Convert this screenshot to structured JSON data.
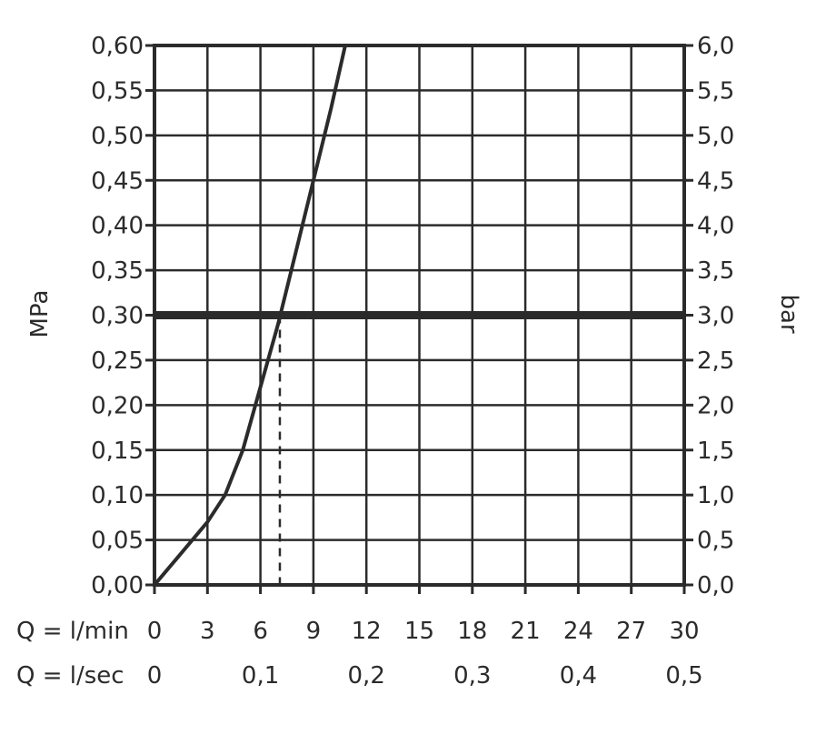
{
  "chart_data": {
    "type": "line",
    "left_axis": {
      "label": "MPa",
      "ticks": [
        "0,00",
        "0,05",
        "0,10",
        "0,15",
        "0,20",
        "0,25",
        "0,30",
        "0,35",
        "0,40",
        "0,45",
        "0,50",
        "0,55",
        "0,60"
      ],
      "range": [
        0,
        0.6
      ]
    },
    "right_axis": {
      "label": "bar",
      "ticks": [
        "0,0",
        "0,5",
        "1,0",
        "1,5",
        "2,0",
        "2,5",
        "3,0",
        "3,5",
        "4,0",
        "4,5",
        "5,0",
        "5,5",
        "6,0"
      ],
      "range": [
        0,
        6
      ]
    },
    "x_axis_lmin": {
      "label": "Q = l/min",
      "ticks": [
        "0",
        "3",
        "6",
        "9",
        "12",
        "15",
        "18",
        "21",
        "24",
        "27",
        "30"
      ],
      "range": [
        0,
        30
      ]
    },
    "x_axis_lsec": {
      "label": "Q = l/sec",
      "ticks": [
        "0",
        "0,1",
        "0,2",
        "0,3",
        "0,4",
        "0,5"
      ],
      "tick_values_lmin": [
        0,
        6,
        12,
        18,
        24,
        30
      ]
    },
    "grid": true,
    "series": [
      {
        "x": [
          0,
          1.5,
          3,
          4,
          5,
          6,
          7,
          8,
          9,
          10,
          10.8
        ],
        "y": [
          0,
          0.035,
          0.07,
          0.1,
          0.15,
          0.22,
          0.29,
          0.37,
          0.45,
          0.53,
          0.6
        ],
        "color": "#2b2b2b"
      }
    ],
    "reference_line": {
      "y": 0.3,
      "color": "#2b2b2b"
    },
    "dashed_marker": {
      "x": 7.1,
      "y": 0.3
    }
  }
}
